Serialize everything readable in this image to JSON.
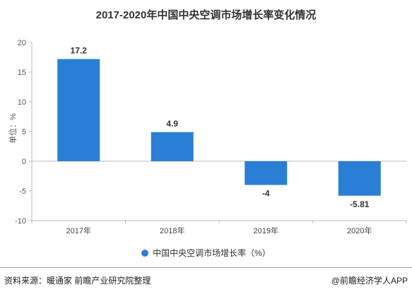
{
  "chart_data": {
    "type": "bar",
    "title": "2017-2020年中国中央空调市场增长率变化情况",
    "ylabel": "单位：%",
    "categories": [
      "2017年",
      "2018年",
      "2019年",
      "2020年"
    ],
    "series": [
      {
        "name": "中国中央空调市场增长率（%）",
        "values": [
          17.2,
          4.9,
          -4,
          -5.81
        ],
        "color": "#2a7fd4"
      }
    ],
    "data_labels": [
      "17.2",
      "4.9",
      "-4",
      "-5.81"
    ],
    "ylim": [
      -10,
      20
    ],
    "yticks": [
      20,
      15,
      10,
      5,
      0,
      -5,
      -10
    ],
    "grid": false,
    "legend_position": "bottom"
  },
  "footer": {
    "source": "资料来源：暖通家 前瞻产业研究院整理",
    "brand": "@前瞻经济学人APP"
  }
}
